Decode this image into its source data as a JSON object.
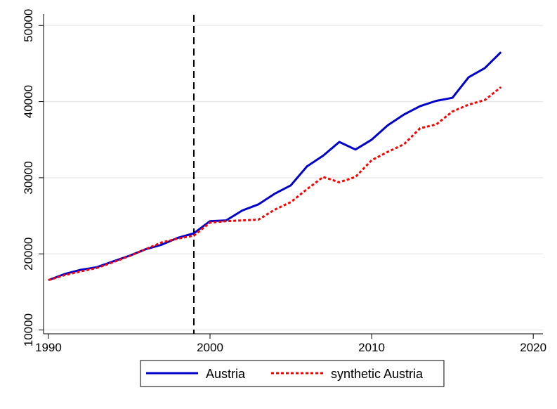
{
  "chart_data": {
    "type": "line",
    "title": "",
    "xlabel": "",
    "ylabel": "",
    "xlim": [
      1989.7,
      2020.6
    ],
    "ylim": [
      9500,
      51500
    ],
    "x_ticks": [
      1990,
      2000,
      2010,
      2020
    ],
    "y_ticks": [
      10000,
      20000,
      30000,
      40000,
      50000
    ],
    "x_tick_labels": [
      "1990",
      "2000",
      "2010",
      "2020"
    ],
    "y_tick_labels": [
      "10000",
      "20000",
      "30000",
      "40000",
      "50000"
    ],
    "grid": "horizontal",
    "legend_position": "bottom",
    "treatment_year": 1999,
    "treatment_line_style": "dashed",
    "x": [
      1990,
      1991,
      1992,
      1993,
      1994,
      1995,
      1996,
      1997,
      1998,
      1999,
      2000,
      2001,
      2002,
      2003,
      2004,
      2005,
      2006,
      2007,
      2008,
      2009,
      2010,
      2011,
      2012,
      2013,
      2014,
      2015,
      2016,
      2017,
      2018
    ],
    "series": [
      {
        "name": "Austria",
        "color": "#0000cc",
        "style": "solid",
        "values": [
          16550,
          17350,
          17900,
          18250,
          19000,
          19750,
          20600,
          21200,
          22100,
          22700,
          24300,
          24400,
          25700,
          26500,
          27900,
          29000,
          31500,
          32900,
          34700,
          33700,
          35000,
          36900,
          38300,
          39400,
          40100,
          40500,
          43200,
          44400,
          46500
        ]
      },
      {
        "name": "synthetic Austria",
        "color": "#ff0000",
        "style": "dotted",
        "values": [
          16550,
          17200,
          17700,
          18150,
          18900,
          19700,
          20600,
          21500,
          22000,
          22400,
          24100,
          24300,
          24400,
          24500,
          25800,
          26800,
          28500,
          30100,
          29400,
          30100,
          32300,
          33400,
          34400,
          36500,
          37000,
          38700,
          39600,
          40200,
          41900
        ]
      }
    ]
  }
}
